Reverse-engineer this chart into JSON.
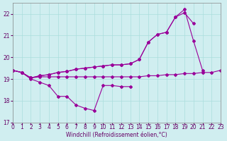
{
  "xlabel": "Windchill (Refroidissement éolien,°C)",
  "xlim": [
    0,
    23
  ],
  "ylim": [
    17,
    22.5
  ],
  "yticks": [
    17,
    18,
    19,
    20,
    21,
    22
  ],
  "xticks": [
    0,
    1,
    2,
    3,
    4,
    5,
    6,
    7,
    8,
    9,
    10,
    11,
    12,
    13,
    14,
    15,
    16,
    17,
    18,
    19,
    20,
    21,
    22,
    23
  ],
  "bg_color": "#d0eef0",
  "line_color": "#990099",
  "grid_color": "#aadddd",
  "s1_x": [
    0,
    1,
    2,
    3,
    4,
    5,
    6,
    7,
    8,
    9,
    10,
    11,
    12,
    13
  ],
  "s1_y": [
    19.4,
    19.3,
    19.0,
    18.85,
    18.7,
    18.2,
    18.2,
    17.8,
    17.65,
    17.55,
    18.7,
    18.7,
    18.65,
    18.65
  ],
  "s2_x": [
    0,
    1,
    2,
    3,
    4,
    5,
    6,
    7,
    8,
    9,
    10,
    11,
    12,
    13,
    14,
    15,
    16,
    17,
    18,
    19,
    20,
    21,
    22,
    23
  ],
  "s2_y": [
    19.4,
    19.3,
    19.05,
    19.1,
    19.1,
    19.1,
    19.1,
    19.1,
    19.1,
    19.1,
    19.1,
    19.1,
    19.1,
    19.1,
    19.1,
    19.15,
    19.15,
    19.2,
    19.2,
    19.25,
    19.25,
    19.3,
    19.3,
    19.4
  ],
  "s3_x": [
    0,
    1,
    2,
    3,
    4,
    5,
    6,
    7,
    8,
    9,
    10,
    11,
    12,
    13,
    14,
    15,
    16,
    17,
    18,
    19,
    20
  ],
  "s3_y": [
    19.4,
    19.3,
    19.05,
    19.15,
    19.2,
    19.3,
    19.35,
    19.45,
    19.5,
    19.55,
    19.6,
    19.65,
    19.65,
    19.7,
    19.9,
    20.7,
    21.05,
    21.15,
    21.85,
    22.05,
    21.55
  ],
  "s4_x": [
    0,
    1,
    2,
    3,
    4,
    5,
    6,
    7,
    8,
    9,
    10,
    11,
    12,
    13,
    14,
    15,
    16,
    17,
    18,
    19,
    20,
    21
  ],
  "s4_y": [
    19.4,
    19.3,
    19.05,
    19.15,
    19.2,
    19.3,
    19.35,
    19.45,
    19.5,
    19.55,
    19.6,
    19.65,
    19.65,
    19.7,
    19.9,
    20.7,
    21.05,
    21.15,
    21.85,
    22.2,
    20.75,
    19.4
  ]
}
